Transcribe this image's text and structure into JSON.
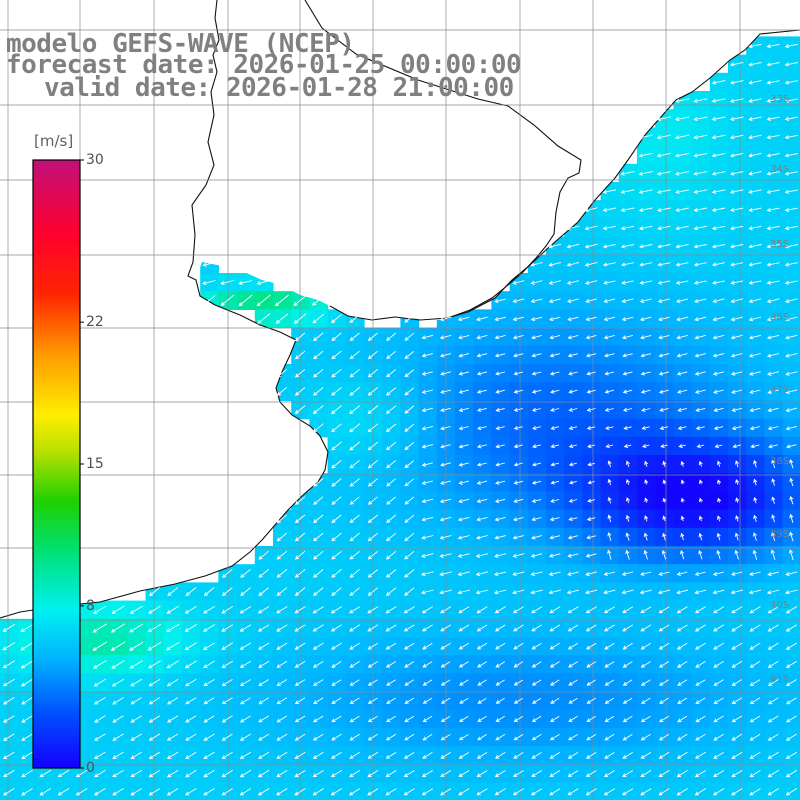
{
  "titles": {
    "model": "modelo GEFS-WAVE (NCEP)",
    "forecast": "forecast date: 2026-01-25 00:00:00",
    "valid": "valid date: 2026-01-28 21:00:00"
  },
  "colorbar": {
    "unit": "[m/s]",
    "ticks": [
      {
        "label": "30",
        "value": 30
      },
      {
        "label": "22",
        "value": 22
      },
      {
        "label": "15",
        "value": 15
      },
      {
        "label": "8",
        "value": 8
      },
      {
        "label": "0",
        "value": 0
      }
    ],
    "range": [
      0,
      30
    ],
    "colors": [
      "#1400ff",
      "#0050ff",
      "#00b4ff",
      "#00f0f0",
      "#00e070",
      "#20d000",
      "#b8e000",
      "#ffee00",
      "#ff9a00",
      "#ff2400",
      "#ff0030",
      "#c0107a"
    ]
  },
  "lat_labels": [
    "33S",
    "34S",
    "35S",
    "36S",
    "37S",
    "38S",
    "39S",
    "40S",
    "41S"
  ],
  "colors": {
    "land": "#ffffff",
    "coast": "#111111",
    "grid": "#8a8a8a",
    "arrow": "#ffffff",
    "title_text": "#808080"
  },
  "field": {
    "description": "wind speed field over the La Plata estuary and southwestern South Atlantic",
    "arrow_direction": "mostly from the east/northeast, toward the west/southwest"
  }
}
